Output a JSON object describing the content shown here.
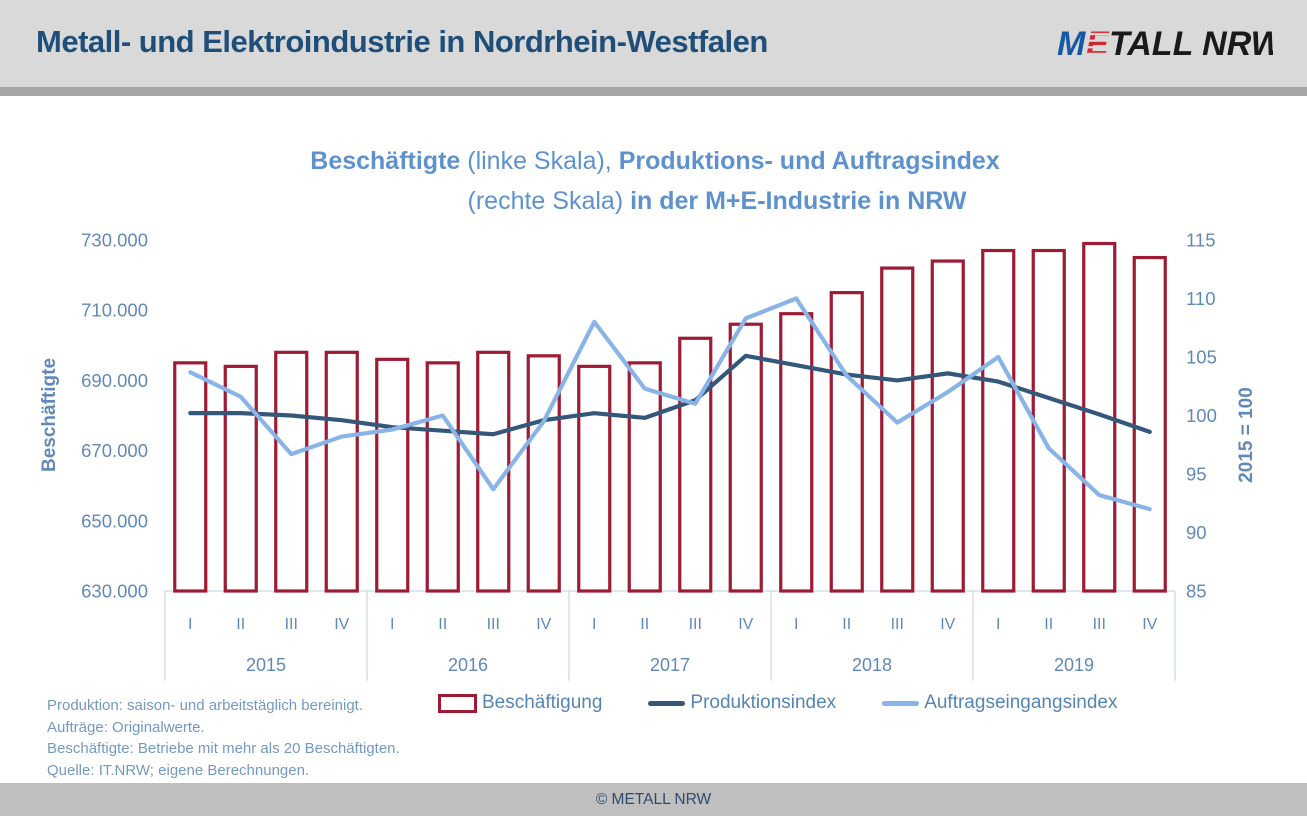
{
  "header": {
    "title": "Metall- und Elektroindustrie in Nordrhein-Westfalen",
    "logo": {
      "m": "M",
      "e": "E",
      "rest": "TALL NRW"
    }
  },
  "title": {
    "line1": [
      {
        "text": "Beschäftigte ",
        "bold": true
      },
      {
        "text": "(linke Skala), ",
        "bold": false
      },
      {
        "text": "Produktions- und Auftragsindex",
        "bold": true
      }
    ],
    "line2": [
      {
        "text": "(rechte Skala) ",
        "bold": false
      },
      {
        "text": "in der M+E-Industrie in NRW",
        "bold": true
      }
    ]
  },
  "chart_data": {
    "type": "bar",
    "subtype": "combo bar + 2 lines, dual y-axis, quarterly",
    "years": [
      "2015",
      "2016",
      "2017",
      "2018",
      "2019"
    ],
    "quarters": [
      "I",
      "II",
      "III",
      "IV"
    ],
    "categories": [
      "2015-I",
      "2015-II",
      "2015-III",
      "2015-IV",
      "2016-I",
      "2016-II",
      "2016-III",
      "2016-IV",
      "2017-I",
      "2017-II",
      "2017-III",
      "2017-IV",
      "2018-I",
      "2018-II",
      "2018-III",
      "2018-IV",
      "2019-I",
      "2019-II",
      "2019-III",
      "2019-IV"
    ],
    "series": [
      {
        "name": "Beschäftigung",
        "type": "bar",
        "axis": "left",
        "stroke": "#9E1B34",
        "fill": "#FFFFFF",
        "values": [
          695000,
          694000,
          698000,
          698000,
          696000,
          695000,
          698000,
          697000,
          694000,
          695000,
          702000,
          706000,
          709000,
          715000,
          722000,
          724000,
          727000,
          727000,
          729000,
          725000
        ]
      },
      {
        "name": "Produktionsindex",
        "type": "line",
        "axis": "right",
        "color": "#35587A",
        "values": [
          100.2,
          100.2,
          100.0,
          99.6,
          99.0,
          98.7,
          98.4,
          99.6,
          100.2,
          99.8,
          101.3,
          105.1,
          104.3,
          103.5,
          103.0,
          103.6,
          102.9,
          101.5,
          100.1,
          98.6
        ]
      },
      {
        "name": "Auftragseingangsindex",
        "type": "line",
        "axis": "right",
        "color": "#88B4E8",
        "values": [
          103.7,
          101.6,
          96.7,
          98.2,
          98.8,
          100.0,
          93.7,
          99.5,
          108.0,
          102.3,
          101.0,
          108.3,
          110.0,
          103.4,
          99.4,
          102.0,
          105.0,
          97.2,
          93.2,
          92.0
        ]
      }
    ],
    "left_axis": {
      "title": "Beschäftigte",
      "min": 630000,
      "max": 730000,
      "step": 20000,
      "ticks": [
        "730.000",
        "710.000",
        "690.000",
        "670.000",
        "650.000",
        "630.000"
      ]
    },
    "right_axis": {
      "title": "2015 = 100",
      "min": 85,
      "max": 115,
      "step": 5,
      "ticks": [
        "115",
        "110",
        "105",
        "100",
        "95",
        "90",
        "85"
      ]
    },
    "grid": false,
    "legend_position": "bottom"
  },
  "legend": [
    {
      "label": "Beschäftigung",
      "swatch": "bar-outline"
    },
    {
      "label": "Produktionsindex",
      "swatch": "line"
    },
    {
      "label": "Auftragseingangsindex",
      "swatch": "line"
    }
  ],
  "footnotes": [
    "Produktion: saison- und arbeitstäglich bereinigt.",
    "Aufträge: Originalwerte.",
    "Beschäftigte: Betriebe mit mehr als 20 Beschäftigten.",
    "Quelle: IT.NRW; eigene Berechnungen."
  ],
  "footer": {
    "copyright": "© METALL NRW"
  },
  "colors": {
    "header_bg": "#D9D9D9",
    "header_rule": "#A6A6A6",
    "header_title": "#1F4E79",
    "chart_title": "#5E92CE",
    "axis_text": "#6189B8",
    "bar_outline": "#9E1B34",
    "production_line": "#35587A",
    "orders_line": "#88B4E8",
    "footer_bg": "#BFBFBF",
    "footer_text": "#2F4A6E",
    "logo_blue": "#1559A6",
    "logo_red": "#D22630",
    "logo_dark": "#1A1A1A"
  }
}
